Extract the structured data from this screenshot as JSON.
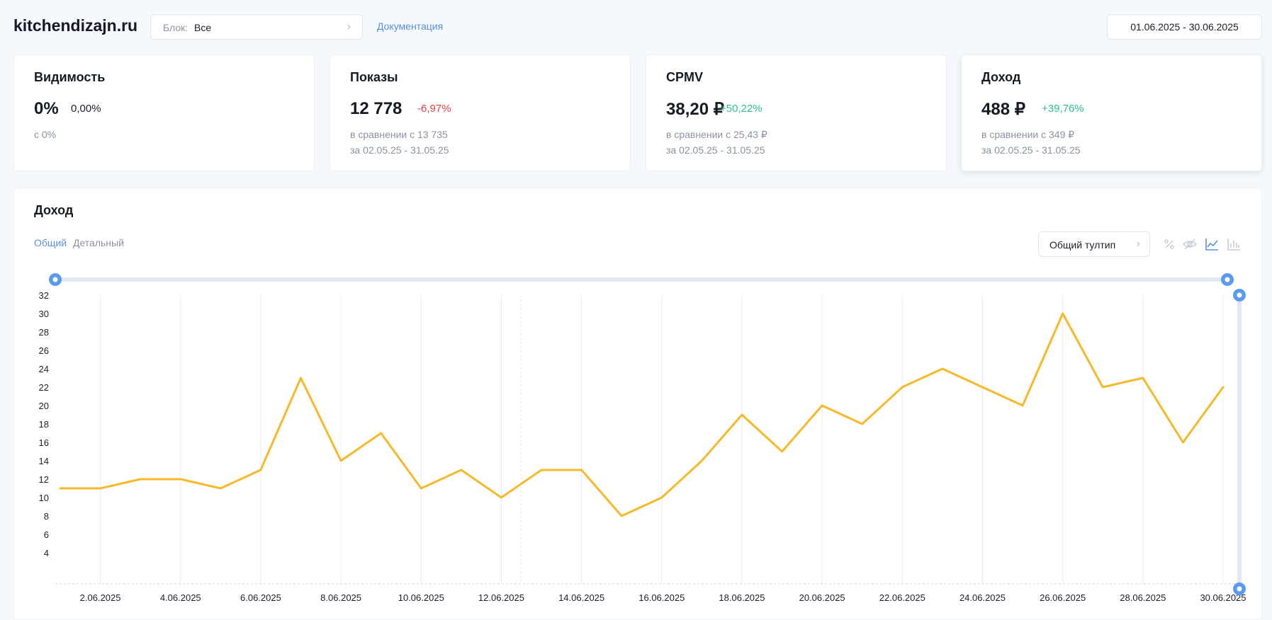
{
  "header": {
    "site": "kitchendizajn.ru",
    "block_label": "Блок:",
    "block_value": "Все",
    "docs_link": "Документация",
    "date_range": "01.06.2025 - 30.06.2025"
  },
  "cards": [
    {
      "title": "Видимость",
      "value": "0%",
      "delta": "0,00%",
      "delta_kind": "neu",
      "sub1": "с 0%",
      "sub2": ""
    },
    {
      "title": "Показы",
      "value": "12 778",
      "delta": "-6,97%",
      "delta_kind": "neg",
      "sub1": "в сравнении с 13 735",
      "sub2": "за 02.05.25 - 31.05.25"
    },
    {
      "title": "CPMV",
      "value": "38,20 ₽",
      "delta": "+50,22%",
      "delta_kind": "pos",
      "sub1": "в сравнении с 25,43 ₽",
      "sub2": "за 02.05.25 - 31.05.25"
    },
    {
      "title": "Доход",
      "value": "488 ₽",
      "delta": "+39,76%",
      "delta_kind": "pos",
      "sub1": "в сравнении с 349 ₽",
      "sub2": "за 02.05.25 - 31.05.25"
    }
  ],
  "chart_panel": {
    "title": "Доход",
    "tabs": [
      "Общий",
      "Детальный"
    ],
    "active_tab": 0,
    "tooltip_select": "Общий тултип",
    "tools": [
      "percent-icon",
      "hide-icon",
      "line-chart-icon",
      "bar-chart-icon"
    ],
    "active_tool": 2
  },
  "chart_data": {
    "type": "line",
    "title": "",
    "xlabel": "",
    "ylabel": "",
    "color": "#f7b92b",
    "x": [
      "1.06.2025",
      "2.06.2025",
      "3.06.2025",
      "4.06.2025",
      "5.06.2025",
      "6.06.2025",
      "7.06.2025",
      "8.06.2025",
      "9.06.2025",
      "10.06.2025",
      "11.06.2025",
      "12.06.2025",
      "13.06.2025",
      "14.06.2025",
      "15.06.2025",
      "16.06.2025",
      "17.06.2025",
      "18.06.2025",
      "19.06.2025",
      "20.06.2025",
      "21.06.2025",
      "22.06.2025",
      "23.06.2025",
      "24.06.2025",
      "25.06.2025",
      "26.06.2025",
      "27.06.2025",
      "28.06.2025",
      "29.06.2025",
      "30.06.2025"
    ],
    "values": [
      11,
      11,
      12,
      12,
      11,
      13,
      23,
      14,
      17,
      11,
      13,
      10,
      13,
      13,
      8,
      10,
      14,
      19,
      15,
      20,
      18,
      22,
      24,
      22,
      20,
      30,
      22,
      23,
      16,
      22
    ],
    "x_tick_labels": [
      "2.06.2025",
      "4.06.2025",
      "6.06.2025",
      "8.06.2025",
      "10.06.2025",
      "12.06.2025",
      "14.06.2025",
      "16.06.2025",
      "18.06.2025",
      "20.06.2025",
      "22.06.2025",
      "24.06.2025",
      "26.06.2025",
      "28.06.2025",
      "30.06.2025"
    ],
    "y_ticks": [
      4,
      6,
      8,
      10,
      12,
      14,
      16,
      18,
      20,
      22,
      24,
      26,
      28,
      30,
      32
    ],
    "ylim": [
      0,
      32
    ],
    "grid": "vertical"
  }
}
